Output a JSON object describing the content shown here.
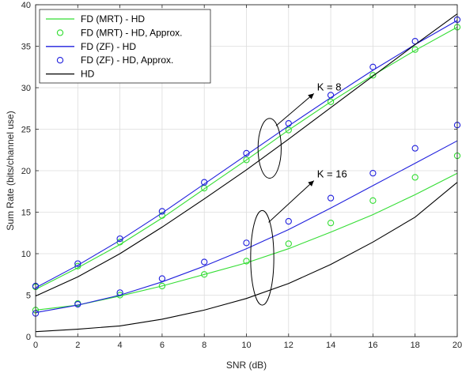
{
  "chart_data": {
    "type": "line",
    "xlabel": "SNR (dB)",
    "ylabel": "Sum Rate (bits/channel use)",
    "xlim": [
      0,
      20
    ],
    "ylim": [
      0,
      40
    ],
    "xticks": [
      0,
      2,
      4,
      6,
      8,
      10,
      12,
      14,
      16,
      18,
      20
    ],
    "yticks": [
      0,
      5,
      10,
      15,
      20,
      25,
      30,
      35,
      40
    ],
    "grid": true,
    "legend_position": "top-left",
    "legend": [
      {
        "label": "FD (MRT) - HD",
        "style": "line",
        "color": "#33dd33"
      },
      {
        "label": "FD (MRT) - HD, Approx.",
        "style": "marker",
        "color": "#33dd33"
      },
      {
        "label": "FD (ZF) - HD",
        "style": "line",
        "color": "#1f1fdd"
      },
      {
        "label": "FD (ZF) - HD, Approx.",
        "style": "marker",
        "color": "#1f1fdd"
      },
      {
        "label": "HD",
        "style": "line",
        "color": "#000000"
      }
    ],
    "x": [
      0,
      2,
      4,
      6,
      8,
      10,
      12,
      14,
      16,
      18,
      20
    ],
    "series": [
      {
        "group": "K8",
        "style": "line",
        "color": "#33dd33",
        "values": [
          5.7,
          8.3,
          11.1,
          14.3,
          17.8,
          21.3,
          24.9,
          28.3,
          31.5,
          34.5,
          37.3
        ]
      },
      {
        "group": "K8",
        "style": "marker",
        "color": "#33dd33",
        "values": [
          6.0,
          8.5,
          11.4,
          14.6,
          17.9,
          21.3,
          24.9,
          28.3,
          31.5,
          34.6,
          37.3
        ]
      },
      {
        "group": "K8",
        "style": "line",
        "color": "#1f1fdd",
        "values": [
          5.9,
          8.6,
          11.6,
          14.9,
          18.4,
          21.9,
          25.4,
          28.8,
          32.1,
          35.2,
          38.1
        ]
      },
      {
        "group": "K8",
        "style": "marker",
        "color": "#1f1fdd",
        "values": [
          6.1,
          8.8,
          11.8,
          15.1,
          18.6,
          22.1,
          25.7,
          29.1,
          32.5,
          35.6,
          38.2
        ]
      },
      {
        "group": "K8",
        "style": "line",
        "color": "#000000",
        "values": [
          4.9,
          7.2,
          10.0,
          13.2,
          16.6,
          20.1,
          23.8,
          27.6,
          31.4,
          35.2,
          38.9
        ]
      },
      {
        "group": "K16",
        "style": "line",
        "color": "#33dd33",
        "values": [
          3.2,
          3.8,
          4.9,
          6.1,
          7.5,
          8.9,
          10.6,
          12.6,
          14.7,
          17.1,
          19.7
        ]
      },
      {
        "group": "K16",
        "style": "marker",
        "color": "#33dd33",
        "values": [
          3.2,
          4.0,
          5.0,
          6.1,
          7.5,
          9.1,
          11.2,
          13.7,
          16.4,
          19.2,
          21.8
        ]
      },
      {
        "group": "K16",
        "style": "line",
        "color": "#1f1fdd",
        "values": [
          2.9,
          3.8,
          5.0,
          6.6,
          8.5,
          10.6,
          12.9,
          15.5,
          18.2,
          20.9,
          23.6
        ]
      },
      {
        "group": "K16",
        "style": "marker",
        "color": "#1f1fdd",
        "values": [
          2.8,
          3.9,
          5.3,
          7.0,
          9.0,
          11.3,
          13.9,
          16.7,
          19.7,
          22.7,
          25.5
        ]
      },
      {
        "group": "K16",
        "style": "line",
        "color": "#000000",
        "values": [
          0.6,
          0.9,
          1.3,
          2.1,
          3.2,
          4.6,
          6.4,
          8.7,
          11.4,
          14.4,
          18.6
        ]
      }
    ],
    "annotations": [
      {
        "text": "K = 8",
        "ellipse_center": [
          11.1,
          22.7
        ],
        "ellipse_radii": [
          0.55,
          3.6
        ],
        "arrow_tip": [
          13.2,
          29.3
        ]
      },
      {
        "text": "K = 16",
        "ellipse_center": [
          10.75,
          9.5
        ],
        "ellipse_radii": [
          0.55,
          5.7
        ],
        "arrow_tip": [
          13.2,
          18.8
        ]
      }
    ]
  }
}
